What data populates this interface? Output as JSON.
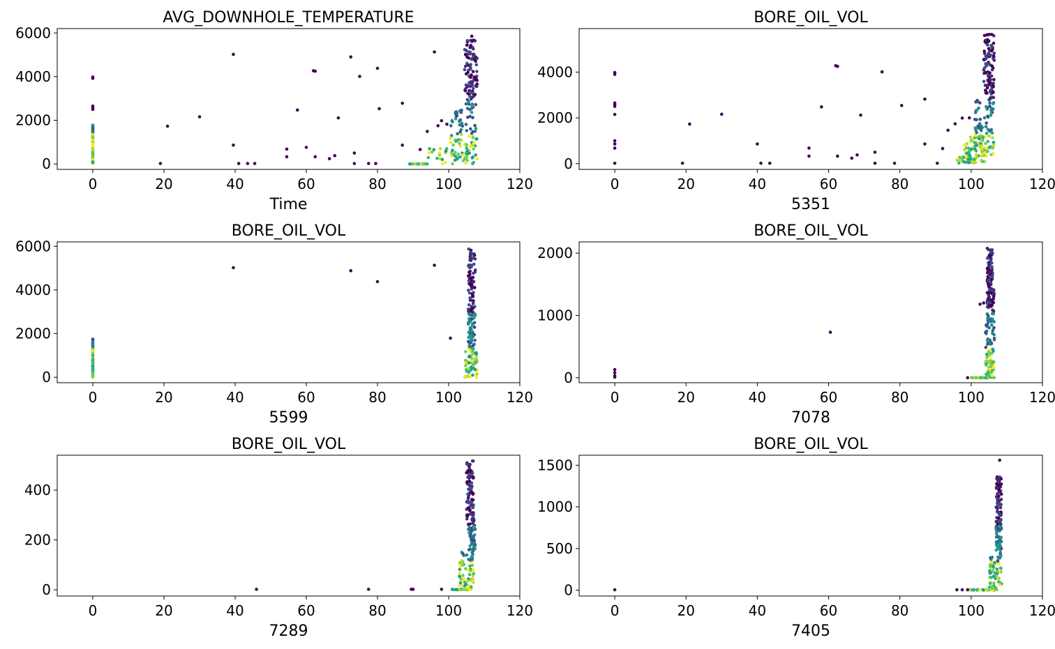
{
  "chart_data": [
    {
      "type": "scatter",
      "title": "AVG_DOWNHOLE_TEMPERATURE",
      "xlabel": "Time",
      "xlim": [
        -10,
        120
      ],
      "ylim": [
        -250,
        6200
      ],
      "xticks": [
        0,
        20,
        40,
        60,
        80,
        100,
        120
      ],
      "yticks": [
        0,
        2000,
        4000,
        6000
      ],
      "color_scale": "viridis (point density)",
      "points": [
        [
          0,
          3980
        ],
        [
          0,
          3920
        ],
        [
          0,
          2650
        ],
        [
          0,
          2580
        ],
        [
          0,
          2500
        ],
        [
          19,
          20
        ],
        [
          21,
          1730
        ],
        [
          30,
          2160
        ],
        [
          39.5,
          5020
        ],
        [
          39.5,
          860
        ],
        [
          41,
          20
        ],
        [
          43.5,
          20
        ],
        [
          45.5,
          20
        ],
        [
          54.5,
          680
        ],
        [
          54.5,
          330
        ],
        [
          57.5,
          2470
        ],
        [
          60,
          760
        ],
        [
          62,
          4270
        ],
        [
          62.5,
          4250
        ],
        [
          62.5,
          330
        ],
        [
          66.5,
          240
        ],
        [
          68,
          380
        ],
        [
          69,
          2110
        ],
        [
          72.5,
          4900
        ],
        [
          73.5,
          500
        ],
        [
          73.5,
          20
        ],
        [
          75,
          4010
        ],
        [
          77.5,
          20
        ],
        [
          79.5,
          20
        ],
        [
          80,
          4380
        ],
        [
          80.5,
          2530
        ],
        [
          87,
          2780
        ],
        [
          87,
          860
        ],
        [
          92,
          660
        ],
        [
          94,
          1490
        ],
        [
          96,
          5130
        ],
        [
          97,
          1750
        ],
        [
          98,
          1980
        ],
        [
          99.5,
          1820
        ]
      ],
      "clusters": [
        {
          "x": [
            0,
            0
          ],
          "y": [
            0,
            1800
          ]
        },
        {
          "x": [
            89,
            94
          ],
          "y": [
            0,
            0
          ]
        },
        {
          "x": [
            94,
            108
          ],
          "y": [
            0,
            700
          ]
        },
        {
          "x": [
            100,
            108
          ],
          "y": [
            300,
            2500
          ]
        },
        {
          "x": [
            104.5,
            108
          ],
          "y": [
            2500,
            5700
          ]
        }
      ],
      "extra_points": [
        [
          106.5,
          5850
        ]
      ]
    },
    {
      "type": "scatter",
      "title": "BORE_OIL_VOL",
      "xlabel": "5351",
      "xlim": [
        -10,
        120
      ],
      "ylim": [
        -250,
        5900
      ],
      "xticks": [
        0,
        20,
        40,
        60,
        80,
        100,
        120
      ],
      "yticks": [
        0,
        2000,
        4000
      ],
      "color_scale": "viridis (point density)",
      "points": [
        [
          0,
          3980
        ],
        [
          0,
          3900
        ],
        [
          0,
          2650
        ],
        [
          0,
          2580
        ],
        [
          0,
          2500
        ],
        [
          0,
          2150
        ],
        [
          0,
          1000
        ],
        [
          0,
          860
        ],
        [
          0,
          680
        ],
        [
          0,
          20
        ],
        [
          19,
          20
        ],
        [
          21,
          1730
        ],
        [
          30,
          2160
        ],
        [
          40,
          860
        ],
        [
          41,
          20
        ],
        [
          43.5,
          20
        ],
        [
          54.5,
          680
        ],
        [
          54.5,
          330
        ],
        [
          58,
          2480
        ],
        [
          62,
          4280
        ],
        [
          62.5,
          4250
        ],
        [
          62.5,
          330
        ],
        [
          66.5,
          240
        ],
        [
          68,
          380
        ],
        [
          69,
          2120
        ],
        [
          73,
          500
        ],
        [
          73,
          20
        ],
        [
          75,
          4010
        ],
        [
          78.5,
          20
        ],
        [
          80.5,
          2540
        ],
        [
          87,
          2820
        ],
        [
          87,
          860
        ],
        [
          90.5,
          20
        ],
        [
          92,
          660
        ],
        [
          93.5,
          1460
        ],
        [
          95.5,
          1740
        ],
        [
          97.5,
          1990
        ],
        [
          99.5,
          2000
        ]
      ],
      "clusters": [
        {
          "x": [
            96,
            101
          ],
          "y": [
            0,
            300
          ]
        },
        {
          "x": [
            98,
            104
          ],
          "y": [
            0,
            1200
          ]
        },
        {
          "x": [
            101,
            106.5
          ],
          "y": [
            200,
            2800
          ]
        },
        {
          "x": [
            103.5,
            106.5
          ],
          "y": [
            2800,
            5650
          ]
        }
      ],
      "extra_points": []
    },
    {
      "type": "scatter",
      "title": "BORE_OIL_VOL",
      "xlabel": "5599",
      "xlim": [
        -10,
        120
      ],
      "ylim": [
        -250,
        6200
      ],
      "xticks": [
        0,
        20,
        40,
        60,
        80,
        100,
        120
      ],
      "yticks": [
        0,
        2000,
        4000,
        6000
      ],
      "color_scale": "viridis (point density)",
      "points": [
        [
          39.5,
          5020
        ],
        [
          72.5,
          4880
        ],
        [
          80,
          4380
        ],
        [
          96,
          5130
        ],
        [
          100.5,
          1790
        ]
      ],
      "clusters": [
        {
          "x": [
            0,
            0
          ],
          "y": [
            0,
            1750
          ]
        },
        {
          "x": [
            104.5,
            108
          ],
          "y": [
            0,
            1200
          ]
        },
        {
          "x": [
            105.5,
            107.5
          ],
          "y": [
            1200,
            5900
          ]
        }
      ],
      "extra_points": []
    },
    {
      "type": "scatter",
      "title": "BORE_OIL_VOL",
      "xlabel": "7078",
      "xlim": [
        -10,
        120
      ],
      "ylim": [
        -80,
        2180
      ],
      "xticks": [
        0,
        20,
        40,
        60,
        80,
        100,
        120
      ],
      "yticks": [
        0,
        1000,
        2000
      ],
      "color_scale": "viridis (point density)",
      "points": [
        [
          0,
          130
        ],
        [
          0,
          80
        ],
        [
          0,
          30
        ],
        [
          0,
          10
        ],
        [
          60.5,
          730
        ],
        [
          99,
          0
        ],
        [
          102.5,
          1180
        ],
        [
          103.5,
          1200
        ]
      ],
      "clusters": [
        {
          "x": [
            100,
            105
          ],
          "y": [
            0,
            0
          ]
        },
        {
          "x": [
            104,
            106.5
          ],
          "y": [
            0,
            900
          ]
        },
        {
          "x": [
            104.5,
            106.5
          ],
          "y": [
            900,
            1500
          ]
        },
        {
          "x": [
            104.5,
            106
          ],
          "y": [
            1500,
            2080
          ]
        }
      ],
      "extra_points": []
    },
    {
      "type": "scatter",
      "title": "BORE_OIL_VOL",
      "xlabel": "7289",
      "xlim": [
        -10,
        120
      ],
      "ylim": [
        -25,
        540
      ],
      "xticks": [
        0,
        20,
        40,
        60,
        80,
        100,
        120
      ],
      "yticks": [
        0,
        200,
        400
      ],
      "color_scale": "viridis (point density)",
      "points": [
        [
          46,
          2
        ],
        [
          77.5,
          2
        ],
        [
          89.5,
          2
        ],
        [
          90,
          2
        ],
        [
          98,
          2
        ]
      ],
      "clusters": [
        {
          "x": [
            101,
            106
          ],
          "y": [
            0,
            2
          ]
        },
        {
          "x": [
            103,
            107
          ],
          "y": [
            0,
            160
          ]
        },
        {
          "x": [
            105.5,
            107.5
          ],
          "y": [
            160,
            280
          ]
        },
        {
          "x": [
            105,
            107
          ],
          "y": [
            280,
            520
          ]
        }
      ],
      "extra_points": []
    },
    {
      "type": "scatter",
      "title": "BORE_OIL_VOL",
      "xlabel": "7405",
      "xlim": [
        -10,
        120
      ],
      "ylim": [
        -70,
        1620
      ],
      "xticks": [
        0,
        20,
        40,
        60,
        80,
        100,
        120
      ],
      "yticks": [
        0,
        500,
        1000,
        1500
      ],
      "color_scale": "viridis (point density)",
      "points": [
        [
          0,
          5
        ],
        [
          96,
          5
        ],
        [
          97.5,
          5
        ],
        [
          99,
          5
        ]
      ],
      "clusters": [
        {
          "x": [
            99,
            107
          ],
          "y": [
            0,
            8
          ]
        },
        {
          "x": [
            105,
            108.5
          ],
          "y": [
            0,
            400
          ]
        },
        {
          "x": [
            107,
            108.5
          ],
          "y": [
            400,
            850
          ]
        },
        {
          "x": [
            107,
            108.5
          ],
          "y": [
            850,
            1360
          ]
        }
      ],
      "extra_points": [
        [
          108,
          1560
        ]
      ]
    }
  ]
}
